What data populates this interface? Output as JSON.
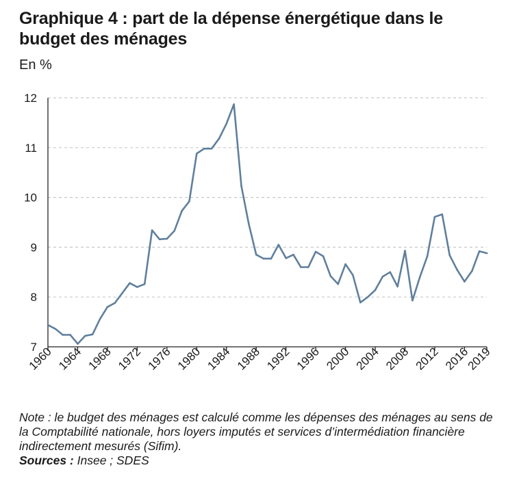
{
  "title_line1": "Graphique 4 : part de la dépense énergétique dans le",
  "title_line2": "budget des ménages",
  "chart_data": {
    "type": "line",
    "title": "Graphique 4 : part de la dépense énergétique dans le budget des ménages",
    "ylabel": "En %",
    "xlabel": "",
    "ylim": [
      7,
      12
    ],
    "yticks": [
      "7",
      "8",
      "9",
      "10",
      "11",
      "12"
    ],
    "xticks": [
      "1960",
      "1964",
      "1968",
      "1972",
      "1976",
      "1980",
      "1984",
      "1988",
      "1992",
      "1996",
      "2000",
      "2004",
      "2008",
      "2012",
      "2016",
      "2019"
    ],
    "grid": "horizontal dashed",
    "line_color": "#5f7f9c",
    "x": [
      1960,
      1961,
      1962,
      1963,
      1964,
      1965,
      1966,
      1967,
      1968,
      1969,
      1970,
      1971,
      1972,
      1973,
      1974,
      1975,
      1976,
      1977,
      1978,
      1979,
      1980,
      1981,
      1982,
      1983,
      1984,
      1985,
      1986,
      1987,
      1988,
      1989,
      1990,
      1991,
      1992,
      1993,
      1994,
      1995,
      1996,
      1997,
      1998,
      1999,
      2000,
      2001,
      2002,
      2003,
      2004,
      2005,
      2006,
      2007,
      2008,
      2009,
      2010,
      2011,
      2012,
      2013,
      2014,
      2015,
      2016,
      2017,
      2018,
      2019
    ],
    "values": [
      7.44,
      7.36,
      7.24,
      7.24,
      7.06,
      7.22,
      7.25,
      7.56,
      7.8,
      7.88,
      8.08,
      8.28,
      8.2,
      8.26,
      9.34,
      9.16,
      9.17,
      9.33,
      9.73,
      9.92,
      10.88,
      10.98,
      10.98,
      11.18,
      11.48,
      11.87,
      10.23,
      9.47,
      8.85,
      8.77,
      8.77,
      9.05,
      8.78,
      8.85,
      8.6,
      8.6,
      8.91,
      8.82,
      8.42,
      8.26,
      8.66,
      8.44,
      7.89,
      8.0,
      8.14,
      8.41,
      8.5,
      8.21,
      8.93,
      7.93,
      8.4,
      8.82,
      9.61,
      9.66,
      8.84,
      8.55,
      8.31,
      8.52,
      8.92,
      8.88
    ]
  },
  "note": {
    "text": "Note : le budget des ménages est calculé comme les dépenses des ménages au sens de la Comptabilité nationale, hors loyers imputés et services d’intermédiation financière indirectement mesurés (Sifim).",
    "sources_label": "Sources :",
    "sources_value": " Insee ; SDES"
  }
}
